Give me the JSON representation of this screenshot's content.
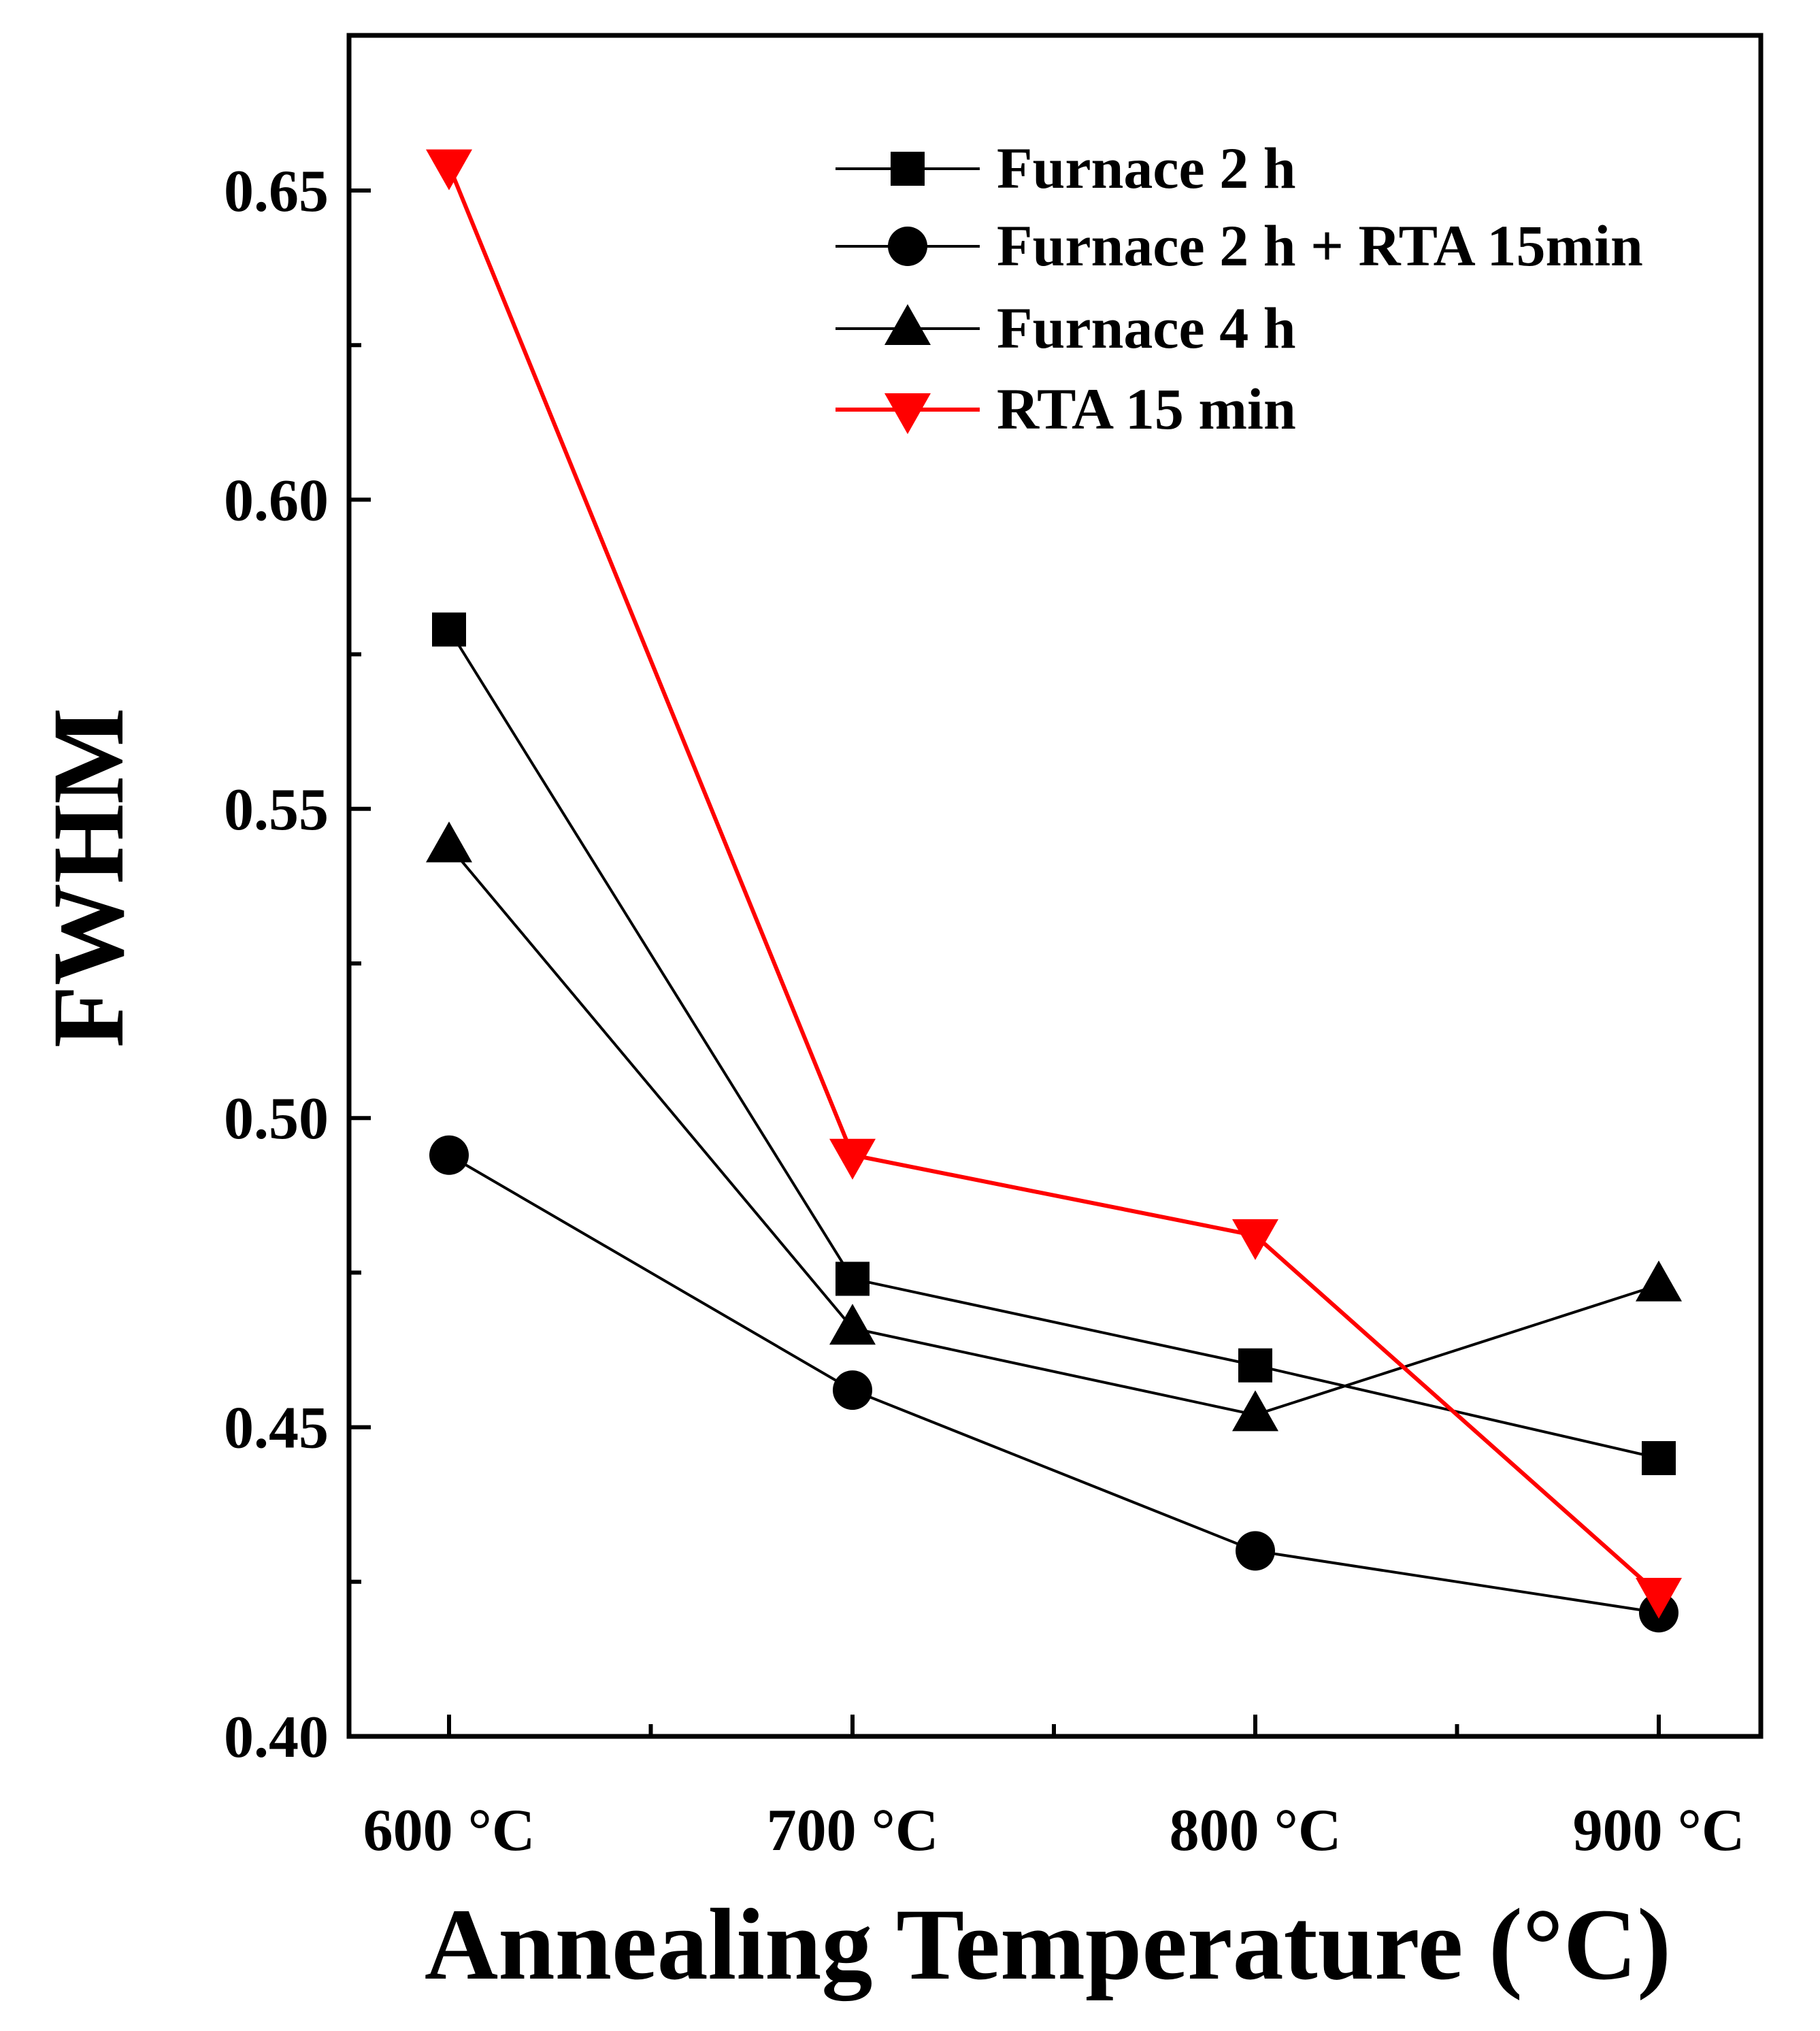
{
  "chart_data": {
    "type": "line",
    "title": "",
    "xlabel": "Annealing Temperature (°C)",
    "ylabel": "FWHM",
    "categories": [
      "600 °C",
      "700 °C",
      "800 °C",
      "900 °C"
    ],
    "ylim": [
      0.4,
      0.67
    ],
    "y_ticks": [
      0.4,
      0.45,
      0.5,
      0.55,
      0.6,
      0.65
    ],
    "y_tick_labels": [
      "0.40",
      "0.45",
      "0.50",
      "0.55",
      "0.60",
      "0.65"
    ],
    "grid": false,
    "legend_position": "top-right",
    "series": [
      {
        "name": "Furnace 2 h",
        "marker": "square",
        "color": "#000000",
        "values": [
          0.579,
          0.474,
          0.46,
          0.445
        ]
      },
      {
        "name": "Furnace 2 h + RTA 15min",
        "marker": "circle",
        "color": "#000000",
        "values": [
          0.494,
          0.456,
          0.43,
          0.42
        ]
      },
      {
        "name": "Furnace 4 h",
        "marker": "triangle-up",
        "color": "#000000",
        "values": [
          0.544,
          0.466,
          0.452,
          0.473
        ]
      },
      {
        "name": "RTA 15 min",
        "marker": "triangle-down",
        "color": "#ff0000",
        "values": [
          0.654,
          0.494,
          0.481,
          0.423
        ]
      }
    ]
  }
}
